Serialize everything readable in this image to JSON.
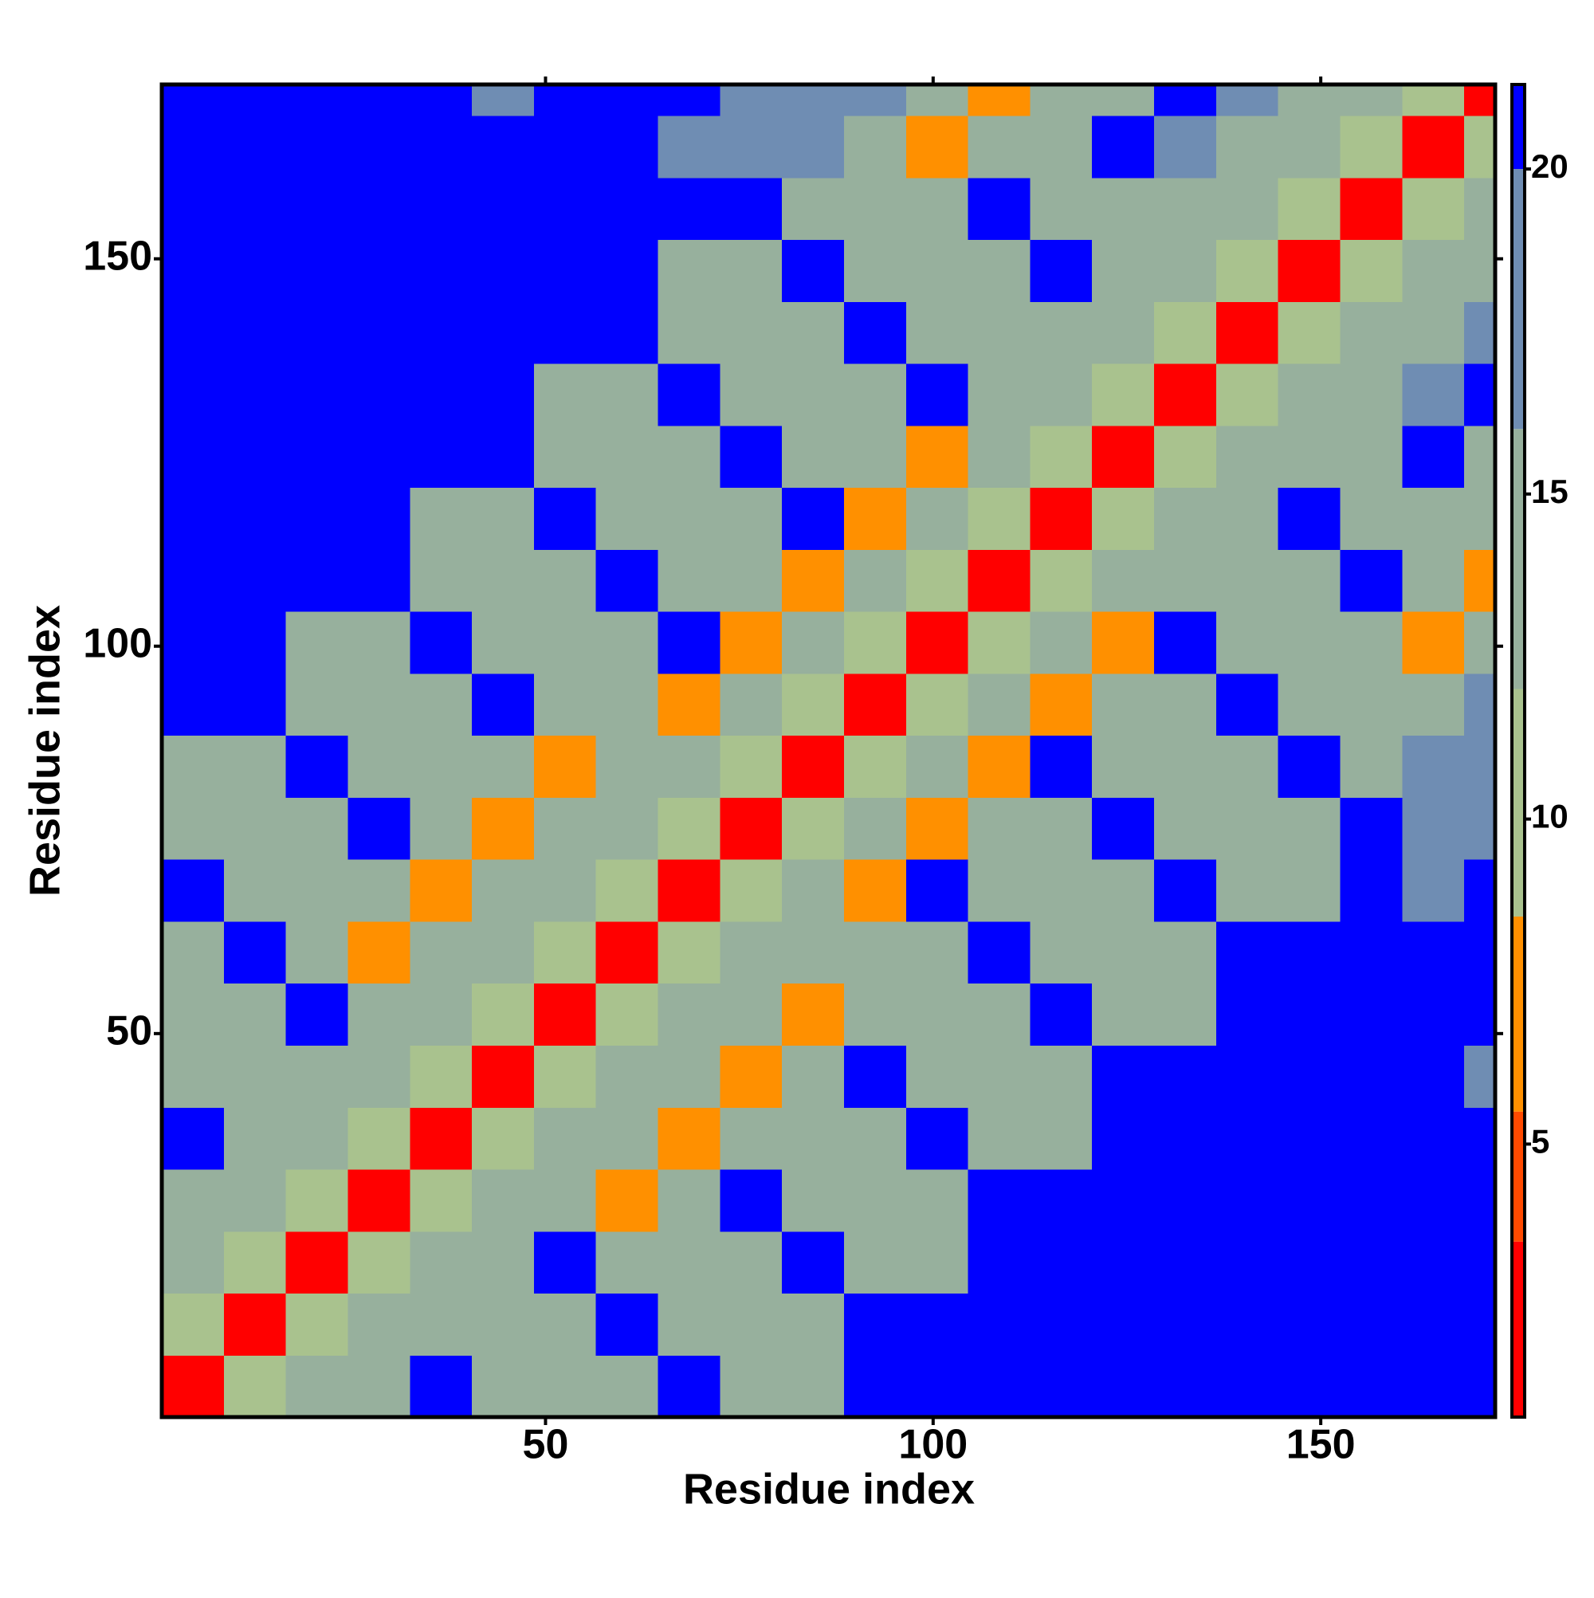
{
  "chart_data": {
    "type": "heatmap",
    "xlabel": "Residue index",
    "ylabel": "Residue index",
    "x_edges": [
      0.5,
      8.5,
      16.5,
      24.5,
      32.5,
      40.5,
      48.5,
      56.5,
      64.5,
      72.5,
      80.5,
      88.5,
      96.5,
      104.5,
      112.5,
      120.5,
      128.5,
      136.5,
      144.5,
      152.5,
      160.5,
      168.5,
      172.5
    ],
    "y_edges": [
      0.5,
      8.5,
      16.5,
      24.5,
      32.5,
      40.5,
      48.5,
      56.5,
      64.5,
      72.5,
      80.5,
      88.5,
      96.5,
      104.5,
      112.5,
      120.5,
      128.5,
      136.5,
      144.5,
      152.5,
      160.5,
      168.5,
      172.5
    ],
    "xlim": [
      0.5,
      172.5
    ],
    "ylim": [
      0.5,
      172.5
    ],
    "xticks": [
      50,
      100,
      150
    ],
    "yticks": [
      50,
      100,
      150
    ],
    "z": [
      [
        2,
        9,
        13,
        14,
        21,
        14,
        14,
        14,
        21,
        14,
        14,
        21,
        21,
        21,
        21,
        21,
        21,
        21,
        21,
        21,
        21,
        21
      ],
      [
        9,
        2,
        9,
        13,
        14,
        14,
        14,
        21,
        14,
        14,
        14,
        21,
        21,
        21,
        21,
        21,
        21,
        21,
        21,
        21,
        21,
        21
      ],
      [
        13,
        9,
        2,
        9,
        13,
        14,
        21,
        14,
        14,
        14,
        21,
        14,
        14,
        21,
        21,
        21,
        21,
        21,
        21,
        21,
        21,
        21
      ],
      [
        14,
        13,
        9,
        2,
        9,
        13,
        14,
        7,
        14,
        21,
        14,
        14,
        14,
        21,
        21,
        21,
        21,
        21,
        21,
        21,
        21,
        21
      ],
      [
        21,
        14,
        13,
        9,
        2,
        9,
        13,
        14,
        7,
        14,
        14,
        14,
        21,
        14,
        14,
        21,
        21,
        21,
        21,
        21,
        21,
        21
      ],
      [
        14,
        14,
        14,
        13,
        9,
        2,
        9,
        13,
        14,
        7,
        14,
        21,
        14,
        14,
        14,
        21,
        21,
        21,
        21,
        21,
        21,
        16
      ],
      [
        14,
        14,
        21,
        14,
        13,
        9,
        2,
        9,
        13,
        14,
        7,
        14,
        14,
        14,
        21,
        14,
        14,
        21,
        21,
        21,
        21,
        21
      ],
      [
        14,
        21,
        14,
        7,
        14,
        13,
        9,
        2,
        9,
        13,
        14,
        14,
        14,
        21,
        14,
        14,
        14,
        21,
        21,
        21,
        21,
        21
      ],
      [
        21,
        14,
        14,
        14,
        7,
        14,
        13,
        9,
        2,
        9,
        13,
        7,
        21,
        14,
        14,
        14,
        21,
        14,
        14,
        21,
        16,
        21
      ],
      [
        14,
        14,
        14,
        21,
        14,
        7,
        14,
        13,
        9,
        2,
        9,
        13,
        7,
        14,
        14,
        21,
        14,
        14,
        14,
        21,
        16,
        16
      ],
      [
        14,
        14,
        21,
        14,
        14,
        14,
        7,
        14,
        13,
        9,
        2,
        9,
        13,
        7,
        21,
        14,
        14,
        14,
        21,
        14,
        16,
        16
      ],
      [
        21,
        21,
        14,
        14,
        14,
        21,
        14,
        14,
        7,
        13,
        9,
        2,
        9,
        13,
        7,
        14,
        14,
        21,
        14,
        14,
        14,
        16
      ],
      [
        21,
        21,
        14,
        14,
        21,
        14,
        14,
        14,
        21,
        7,
        13,
        9,
        2,
        9,
        13,
        7,
        21,
        14,
        14,
        14,
        7,
        14
      ],
      [
        21,
        21,
        21,
        21,
        14,
        14,
        14,
        21,
        14,
        14,
        7,
        13,
        9,
        2,
        9,
        13,
        14,
        14,
        14,
        21,
        14,
        7
      ],
      [
        21,
        21,
        21,
        21,
        14,
        14,
        21,
        14,
        14,
        14,
        21,
        7,
        13,
        9,
        2,
        9,
        13,
        14,
        21,
        14,
        14,
        14
      ],
      [
        21,
        21,
        21,
        21,
        21,
        21,
        14,
        14,
        14,
        21,
        14,
        14,
        7,
        13,
        9,
        2,
        9,
        13,
        14,
        14,
        21,
        14
      ],
      [
        21,
        21,
        21,
        21,
        21,
        21,
        14,
        14,
        21,
        14,
        14,
        14,
        21,
        14,
        13,
        9,
        2,
        9,
        13,
        14,
        16,
        21
      ],
      [
        21,
        21,
        21,
        21,
        21,
        21,
        21,
        21,
        14,
        14,
        14,
        21,
        14,
        14,
        14,
        13,
        9,
        2,
        9,
        13,
        14,
        16
      ],
      [
        21,
        21,
        21,
        21,
        21,
        21,
        21,
        21,
        14,
        14,
        21,
        14,
        14,
        14,
        21,
        14,
        13,
        9,
        2,
        9,
        13,
        14
      ],
      [
        21,
        21,
        21,
        21,
        21,
        21,
        21,
        21,
        21,
        21,
        14,
        14,
        14,
        21,
        14,
        14,
        14,
        13,
        9,
        2,
        9,
        13
      ],
      [
        21,
        21,
        21,
        21,
        21,
        21,
        21,
        21,
        16,
        16,
        16,
        14,
        7,
        14,
        14,
        21,
        16,
        14,
        13,
        9,
        2,
        9
      ],
      [
        21,
        21,
        21,
        21,
        21,
        16,
        21,
        21,
        21,
        16,
        16,
        16,
        14,
        7,
        14,
        14,
        21,
        16,
        14,
        13,
        9,
        2
      ]
    ],
    "clim": [
      0.8,
      21.3
    ],
    "cticks": [
      5,
      10,
      15,
      20
    ],
    "color_bands": [
      {
        "from": 0.8,
        "to": 3.5,
        "color": "#ff0000"
      },
      {
        "from": 3.5,
        "to": 5.5,
        "color": "#ff4a00"
      },
      {
        "from": 5.5,
        "to": 8.5,
        "color": "#ff9000"
      },
      {
        "from": 8.5,
        "to": 12,
        "color": "#a9c28e"
      },
      {
        "from": 12,
        "to": 16,
        "color": "#97b09d"
      },
      {
        "from": 16,
        "to": 20,
        "color": "#6f8db3"
      },
      {
        "from": 20,
        "to": 21.3,
        "color": "#0000ff"
      }
    ]
  }
}
